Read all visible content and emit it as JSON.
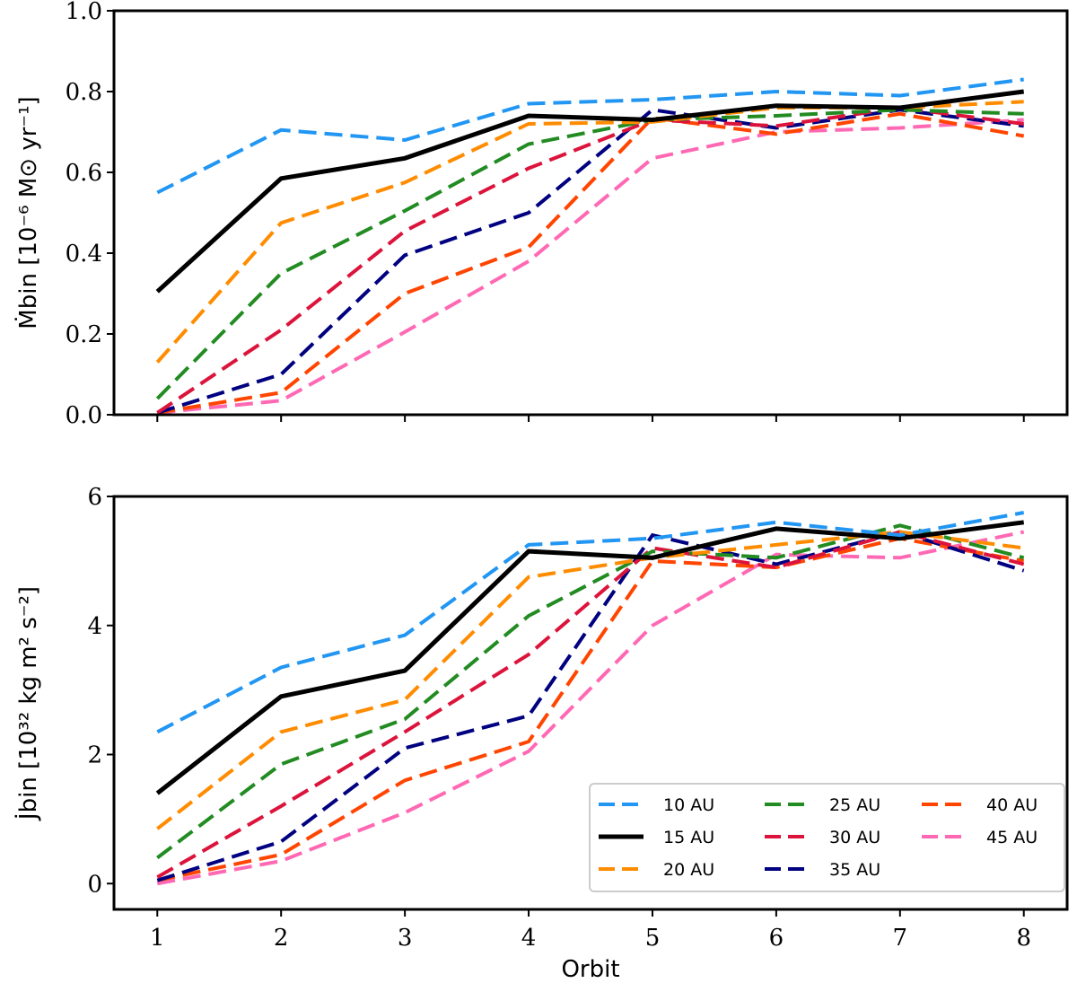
{
  "chart_data": [
    {
      "type": "line",
      "panel": "top",
      "xlabel": "",
      "ylabel": "Ṁbin [10⁻⁶ M⊙ yr⁻¹]",
      "x": [
        1,
        2,
        3,
        4,
        5,
        6,
        7,
        8
      ],
      "xlim": [
        0.65,
        8.35
      ],
      "ylim": [
        0.0,
        1.0
      ],
      "yticks": [
        0.0,
        0.2,
        0.4,
        0.6,
        0.8,
        1.0
      ],
      "ytick_labels": [
        "0.0",
        "0.2",
        "0.4",
        "0.6",
        "0.8",
        "1.0"
      ],
      "xtick_labels_shown": false,
      "series": [
        {
          "name": "10 AU",
          "color": "#2196f3",
          "style": "dashed",
          "values": [
            0.55,
            0.705,
            0.68,
            0.77,
            0.78,
            0.8,
            0.79,
            0.83
          ]
        },
        {
          "name": "15 AU",
          "color": "#000000",
          "style": "solid",
          "values": [
            0.305,
            0.585,
            0.635,
            0.74,
            0.73,
            0.765,
            0.76,
            0.8
          ]
        },
        {
          "name": "20 AU",
          "color": "#ff8c00",
          "style": "dashed",
          "values": [
            0.13,
            0.475,
            0.575,
            0.72,
            0.725,
            0.76,
            0.76,
            0.775
          ]
        },
        {
          "name": "25 AU",
          "color": "#228b22",
          "style": "dashed",
          "values": [
            0.04,
            0.35,
            0.505,
            0.67,
            0.73,
            0.74,
            0.755,
            0.745
          ]
        },
        {
          "name": "30 AU",
          "color": "#dc143c",
          "style": "dashed",
          "values": [
            0.005,
            0.21,
            0.455,
            0.61,
            0.73,
            0.715,
            0.76,
            0.72
          ]
        },
        {
          "name": "35 AU",
          "color": "#000080",
          "style": "dashed",
          "values": [
            0.005,
            0.1,
            0.395,
            0.5,
            0.755,
            0.71,
            0.755,
            0.715
          ]
        },
        {
          "name": "40 AU",
          "color": "#ff4500",
          "style": "dashed",
          "values": [
            0.005,
            0.055,
            0.3,
            0.415,
            0.735,
            0.695,
            0.745,
            0.69
          ]
        },
        {
          "name": "45 AU",
          "color": "#ff69b4",
          "style": "dashed",
          "values": [
            0.005,
            0.035,
            0.205,
            0.38,
            0.635,
            0.7,
            0.71,
            0.73
          ]
        }
      ]
    },
    {
      "type": "line",
      "panel": "bottom",
      "xlabel": "Orbit",
      "ylabel": "J̇bin [10³² kg m² s⁻²]",
      "x": [
        1,
        2,
        3,
        4,
        5,
        6,
        7,
        8
      ],
      "xlim": [
        0.65,
        8.35
      ],
      "ylim": [
        -0.4,
        6.0
      ],
      "yticks": [
        0,
        2,
        4,
        6
      ],
      "ytick_labels": [
        "0",
        "2",
        "4",
        "6"
      ],
      "xticks": [
        1,
        2,
        3,
        4,
        5,
        6,
        7,
        8
      ],
      "xtick_labels": [
        "1",
        "2",
        "3",
        "4",
        "5",
        "6",
        "7",
        "8"
      ],
      "legend_placement": "lower-right",
      "legend_columns": 3,
      "series": [
        {
          "name": "10 AU",
          "color": "#2196f3",
          "style": "dashed",
          "values": [
            2.35,
            3.35,
            3.85,
            5.25,
            5.35,
            5.6,
            5.4,
            5.75
          ]
        },
        {
          "name": "15 AU",
          "color": "#000000",
          "style": "solid",
          "values": [
            1.4,
            2.9,
            3.3,
            5.15,
            5.05,
            5.5,
            5.35,
            5.6
          ]
        },
        {
          "name": "20 AU",
          "color": "#ff8c00",
          "style": "dashed",
          "values": [
            0.85,
            2.35,
            2.85,
            4.75,
            5.05,
            5.25,
            5.45,
            5.2
          ]
        },
        {
          "name": "25 AU",
          "color": "#228b22",
          "style": "dashed",
          "values": [
            0.4,
            1.85,
            2.55,
            4.15,
            5.15,
            5.05,
            5.55,
            5.05
          ]
        },
        {
          "name": "30 AU",
          "color": "#dc143c",
          "style": "dashed",
          "values": [
            0.1,
            1.2,
            2.35,
            3.55,
            5.2,
            4.9,
            5.45,
            4.95
          ]
        },
        {
          "name": "35 AU",
          "color": "#000080",
          "style": "dashed",
          "values": [
            0.05,
            0.65,
            2.1,
            2.6,
            5.4,
            4.95,
            5.45,
            4.85
          ]
        },
        {
          "name": "40 AU",
          "color": "#ff4500",
          "style": "dashed",
          "values": [
            0.05,
            0.45,
            1.6,
            2.2,
            5.0,
            4.9,
            5.35,
            5.0
          ]
        },
        {
          "name": "45 AU",
          "color": "#ff69b4",
          "style": "dashed",
          "values": [
            0.0,
            0.35,
            1.1,
            2.05,
            4.0,
            5.1,
            5.05,
            5.45
          ]
        }
      ]
    }
  ]
}
